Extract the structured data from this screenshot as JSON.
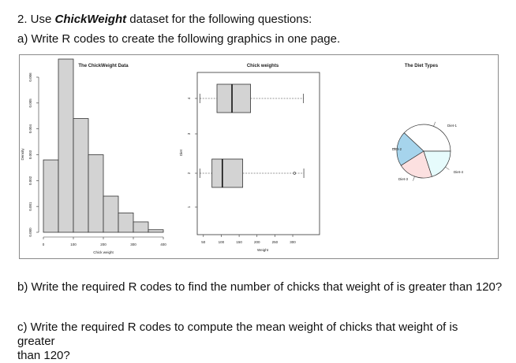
{
  "question": {
    "number_prefix": "2. Use ",
    "dataset": "ChickWeight",
    "title_suffix": " dataset for the following questions:",
    "part_a": "a) Write R codes to create the following graphics in one page.",
    "part_b": "b) Write the required R codes to find the number of chicks that weight of is greater than 120?",
    "part_c_line1": "c) Write the required R codes to compute the mean weight of chicks that weight of is greater",
    "part_c_line2": "than 120?"
  },
  "chart_data": [
    {
      "type": "bar",
      "subtype": "histogram",
      "title": "The ChickWeight Data",
      "xlabel": "Chick weight",
      "ylabel": "Density",
      "bins": [
        {
          "from": 0,
          "to": 50,
          "density": 0.0028
        },
        {
          "from": 50,
          "to": 100,
          "density": 0.0067
        },
        {
          "from": 100,
          "to": 150,
          "density": 0.0044
        },
        {
          "from": 150,
          "to": 200,
          "density": 0.003
        },
        {
          "from": 200,
          "to": 250,
          "density": 0.0014
        },
        {
          "from": 250,
          "to": 300,
          "density": 0.00075
        },
        {
          "from": 300,
          "to": 350,
          "density": 0.0004
        },
        {
          "from": 350,
          "to": 400,
          "density": 0.0001
        }
      ],
      "xlim": [
        0,
        400
      ],
      "ylim": [
        0,
        0.006
      ],
      "x_ticks": [
        "0",
        "100",
        "200",
        "300",
        "400"
      ],
      "y_ticks": [
        "0.000",
        "0.001",
        "0.002",
        "0.003",
        "0.004",
        "0.005",
        "0.006"
      ],
      "fill_color": "#d3d3d3"
    },
    {
      "type": "boxplot",
      "orientation": "horizontal",
      "title": "Chick weights",
      "xlabel": "Weight",
      "ylabel": "Diet",
      "xlim": [
        35,
        375
      ],
      "x_ticks": [
        "50",
        "100",
        "150",
        "200",
        "250",
        "300"
      ],
      "y_ticks": [
        "1",
        "2",
        "3",
        "4"
      ],
      "boxes": [
        {
          "group": "4",
          "min": 40,
          "q1": 88,
          "median": 130,
          "q3": 182,
          "max": 330
        },
        {
          "group": "2",
          "min": 40,
          "q1": 74,
          "median": 103,
          "q3": 160,
          "max": 331,
          "outlier": 305
        }
      ],
      "fill_color": "#d3d3d3"
    },
    {
      "type": "pie",
      "title": "The Diet Types",
      "slices": [
        {
          "label": "Diet-1",
          "value": 0.38,
          "color": "#ffffff"
        },
        {
          "label": "Diet-2",
          "value": 0.21,
          "color": "#a6d4ec"
        },
        {
          "label": "Diet-3",
          "value": 0.21,
          "color": "#fce0e0"
        },
        {
          "label": "Diet-4",
          "value": 0.2,
          "color": "#e6fbfc"
        }
      ]
    }
  ]
}
